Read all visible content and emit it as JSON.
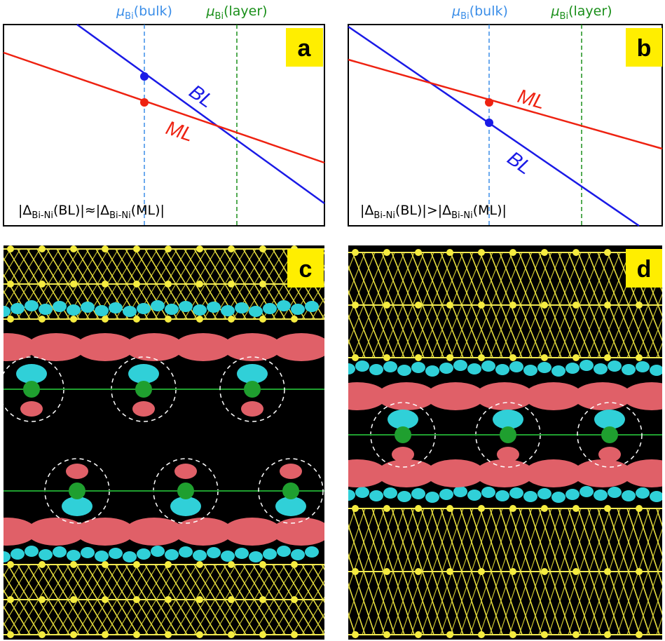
{
  "panels": [
    {
      "label": "a",
      "markers": [
        {
          "symbol": "μ",
          "subscript": "Bi",
          "suffix": "(bulk)"
        },
        {
          "symbol": "μ",
          "subscript": "Bi",
          "suffix": "(layer)"
        }
      ],
      "lines": [
        {
          "label": "BL"
        },
        {
          "label": "ML"
        }
      ],
      "formula": [
        "|Δ",
        "Bi-Ni",
        "(BL)|≈|Δ",
        "Bi-Ni",
        "(ML)|"
      ]
    },
    {
      "label": "b",
      "markers": [
        {
          "symbol": "μ",
          "subscript": "Bi",
          "suffix": "(bulk)"
        },
        {
          "symbol": "μ",
          "subscript": "Bi",
          "suffix": "(layer)"
        }
      ],
      "lines": [
        {
          "label": "ML"
        },
        {
          "label": "BL"
        }
      ],
      "formula": [
        "|Δ",
        "Bi-Ni",
        "(BL)|>|Δ",
        "Bi-Ni",
        "(ML)|"
      ]
    },
    {
      "label": "c"
    },
    {
      "label": "d"
    }
  ]
}
